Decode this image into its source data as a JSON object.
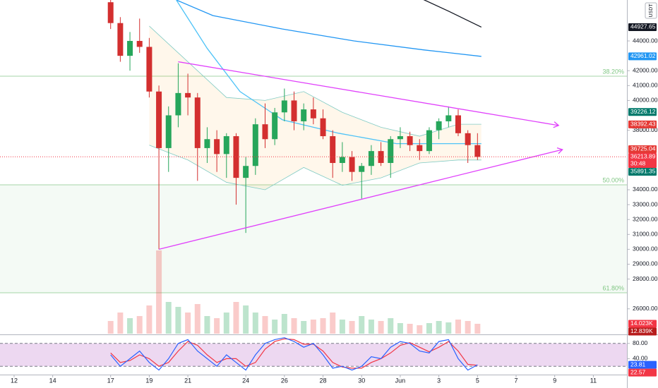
{
  "chart_data": {
    "type": "candlestick",
    "x": [
      5,
      5.5,
      6,
      6.5,
      7,
      7.5,
      8,
      8.5,
      9,
      9.5,
      10,
      10.5,
      11,
      11.5,
      12,
      12.5,
      13,
      13.5,
      14,
      14.5,
      15,
      15.5,
      16,
      16.5,
      17,
      17.5,
      18,
      18.5,
      19,
      19.5,
      20,
      20.5,
      21,
      21.5,
      22,
      22.5,
      23,
      23.5,
      24
    ],
    "open": [
      46600,
      45200,
      43000,
      44000,
      43600,
      40600,
      36800,
      39000,
      40500,
      40200,
      36800,
      37400,
      36400,
      37600,
      34800,
      35600,
      38400,
      37400,
      39200,
      40000,
      38600,
      39400,
      38800,
      37600,
      35800,
      36200,
      35200,
      35600,
      36600,
      35800,
      37400,
      37600,
      37000,
      36600,
      38000,
      38600,
      39000,
      37800,
      37000
    ],
    "high": [
      46800,
      45600,
      44600,
      45500,
      44200,
      41000,
      39600,
      42500,
      41800,
      40500,
      38200,
      38000,
      37800,
      37800,
      36200,
      38800,
      39800,
      39500,
      40800,
      40600,
      39800,
      40200,
      39400,
      38000,
      37200,
      36600,
      35800,
      37000,
      37200,
      37600,
      38200,
      37900,
      37400,
      38200,
      38800,
      39600,
      39400,
      38000,
      37800
    ],
    "low": [
      44800,
      42600,
      42000,
      43200,
      40200,
      30000,
      35200,
      38200,
      39000,
      34600,
      35800,
      35200,
      34800,
      33000,
      31100,
      35000,
      36800,
      37000,
      38600,
      38000,
      38000,
      38400,
      37400,
      34800,
      35200,
      34600,
      33400,
      35000,
      35600,
      34800,
      36800,
      36600,
      36000,
      36400,
      37400,
      38200,
      37600,
      35800,
      36000
    ],
    "close": [
      45200,
      43000,
      44000,
      43600,
      40600,
      36800,
      39000,
      40500,
      40200,
      36800,
      37400,
      36400,
      37600,
      34800,
      35600,
      38400,
      37400,
      39200,
      40000,
      38600,
      39400,
      38800,
      37600,
      35800,
      36200,
      35200,
      35600,
      36600,
      35800,
      37400,
      37600,
      37000,
      36600,
      38000,
      38600,
      39000,
      37800,
      37000,
      36213.89
    ],
    "up_color": "#26a65b",
    "down_color": "#d32f2f",
    "xlim": [
      -0.73,
      31.74
    ],
    "xticks": [
      {
        "value": 0,
        "label": "12"
      },
      {
        "value": 2,
        "label": "14"
      },
      {
        "value": 5,
        "label": "17"
      },
      {
        "value": 7,
        "label": "19"
      },
      {
        "value": 9,
        "label": "21"
      },
      {
        "value": 12,
        "label": "24"
      },
      {
        "value": 14,
        "label": "26"
      },
      {
        "value": 16,
        "label": "28"
      },
      {
        "value": 18,
        "label": "30"
      },
      {
        "value": 20,
        "label": "Jun"
      },
      {
        "value": 22,
        "label": "3"
      },
      {
        "value": 24,
        "label": "5"
      },
      {
        "value": 26,
        "label": "7"
      },
      {
        "value": 28,
        "label": "9"
      },
      {
        "value": 30,
        "label": "11"
      }
    ],
    "ylim": [
      24330,
      46750
    ],
    "yticks": [
      {
        "value": 44000,
        "label": "44000.00"
      },
      {
        "value": 42000,
        "label": "42000.00"
      },
      {
        "value": 41000,
        "label": "41000.00"
      },
      {
        "value": 40000,
        "label": "40000.00"
      },
      {
        "value": 38000,
        "label": "38000.00"
      },
      {
        "value": 34000,
        "label": "34000.00"
      },
      {
        "value": 33000,
        "label": "33000.00"
      },
      {
        "value": 32000,
        "label": "32000.00"
      },
      {
        "value": 31000,
        "label": "31000.00"
      },
      {
        "value": 30000,
        "label": "30000.00"
      },
      {
        "value": 29000,
        "label": "29000.00"
      },
      {
        "value": 28000,
        "label": "28000.00"
      },
      {
        "value": 26000,
        "label": "26000.00"
      }
    ],
    "currency": "USDT",
    "lines": [
      {
        "color": "#131722",
        "x": [
          20.5,
          22.5,
          24.2
        ],
        "values": [
          47200,
          46000,
          44927.65
        ]
      },
      {
        "color": "#2196f3",
        "x": [
          8.4,
          10.3,
          13.9,
          17.6,
          21.2,
          24.2
        ],
        "values": [
          46750,
          45700,
          44800,
          44000,
          43400,
          42961.02
        ]
      },
      {
        "color": "#4fc3f7",
        "x": [
          8.4,
          10,
          11.7,
          13.9,
          16.8,
          19.8,
          24.2
        ],
        "values": [
          46750,
          43500,
          40600,
          38700,
          37800,
          37100,
          37100
        ]
      }
    ],
    "band": {
      "color": "#ff9800",
      "x": [
        7,
        9,
        11,
        13,
        15,
        17,
        19,
        21,
        23,
        24.2
      ],
      "upper": [
        45000,
        42600,
        40200,
        40000,
        40600,
        39200,
        38200,
        37600,
        38400,
        38400
      ],
      "lower": [
        37000,
        36000,
        34500,
        34000,
        35500,
        34300,
        34800,
        35800,
        36000,
        36000
      ]
    },
    "trendlines": [
      {
        "color": "#e040fb",
        "x": [
          8.5,
          28.2
        ],
        "values": [
          42600,
          38320
        ]
      },
      {
        "color": "#e040fb",
        "x": [
          7.5,
          28.4
        ],
        "values": [
          30000,
          36700
        ]
      }
    ],
    "fib_levels": [
      {
        "value": 41630,
        "label": "38.20%"
      },
      {
        "value": 34330,
        "label": "50.00%"
      },
      {
        "value": 27080,
        "label": "61.80%"
      }
    ],
    "price_labels": [
      {
        "value": 44927.65,
        "color": "#131722"
      },
      {
        "value": 42961.02,
        "color": "#2196f3"
      },
      {
        "value": 39226.12,
        "color": "#00796b"
      },
      {
        "value": 38392.43,
        "color": "#e53935"
      },
      {
        "value": 36725.04,
        "color": "#e53935"
      },
      {
        "value": 36213.89,
        "color": "#f23645",
        "countdown": "30:48"
      },
      {
        "value": 35891.35,
        "color": "#00796b"
      }
    ],
    "volume": {
      "values": [
        18000,
        30000,
        22000,
        25000,
        40000,
        118000,
        45000,
        38000,
        30000,
        42000,
        25000,
        22000,
        30000,
        45000,
        40000,
        30000,
        25000,
        20000,
        28000,
        22000,
        18000,
        20000,
        22000,
        30000,
        20000,
        18000,
        25000,
        20000,
        18000,
        22000,
        15000,
        14000,
        12000,
        15000,
        18000,
        16000,
        20000,
        18000,
        14023
      ],
      "ylim": [
        0,
        473000
      ],
      "markers": [
        {
          "value": 14023,
          "label": "14.023K",
          "color": "#f23645"
        },
        {
          "value": 12839,
          "label": "12.839K",
          "color": "#b71c1c"
        }
      ]
    },
    "stochastic": {
      "k": [
        50,
        20,
        40,
        60,
        30,
        10,
        40,
        80,
        90,
        60,
        40,
        20,
        50,
        30,
        10,
        50,
        80,
        90,
        95,
        85,
        70,
        80,
        50,
        15,
        20,
        10,
        20,
        45,
        40,
        70,
        85,
        80,
        60,
        55,
        85,
        90,
        40,
        10,
        23.81
      ],
      "d": [
        55,
        30,
        35,
        50,
        40,
        20,
        30,
        60,
        85,
        75,
        50,
        30,
        40,
        40,
        20,
        30,
        65,
        85,
        92,
        90,
        78,
        78,
        60,
        30,
        18,
        15,
        15,
        30,
        40,
        55,
        75,
        82,
        70,
        58,
        70,
        85,
        60,
        25,
        22.57
      ],
      "k_color": "#2962ff",
      "d_color": "#f23645",
      "ylim": [
        0,
        100
      ],
      "yticks": [
        {
          "value": 80,
          "label": "80.00"
        },
        {
          "value": 40,
          "label": "40.00"
        }
      ],
      "levels": [
        80,
        20
      ],
      "markers": [
        {
          "value": 23.81,
          "color": "#2962ff"
        },
        {
          "value": 22.57,
          "color": "#f23645"
        }
      ]
    }
  }
}
